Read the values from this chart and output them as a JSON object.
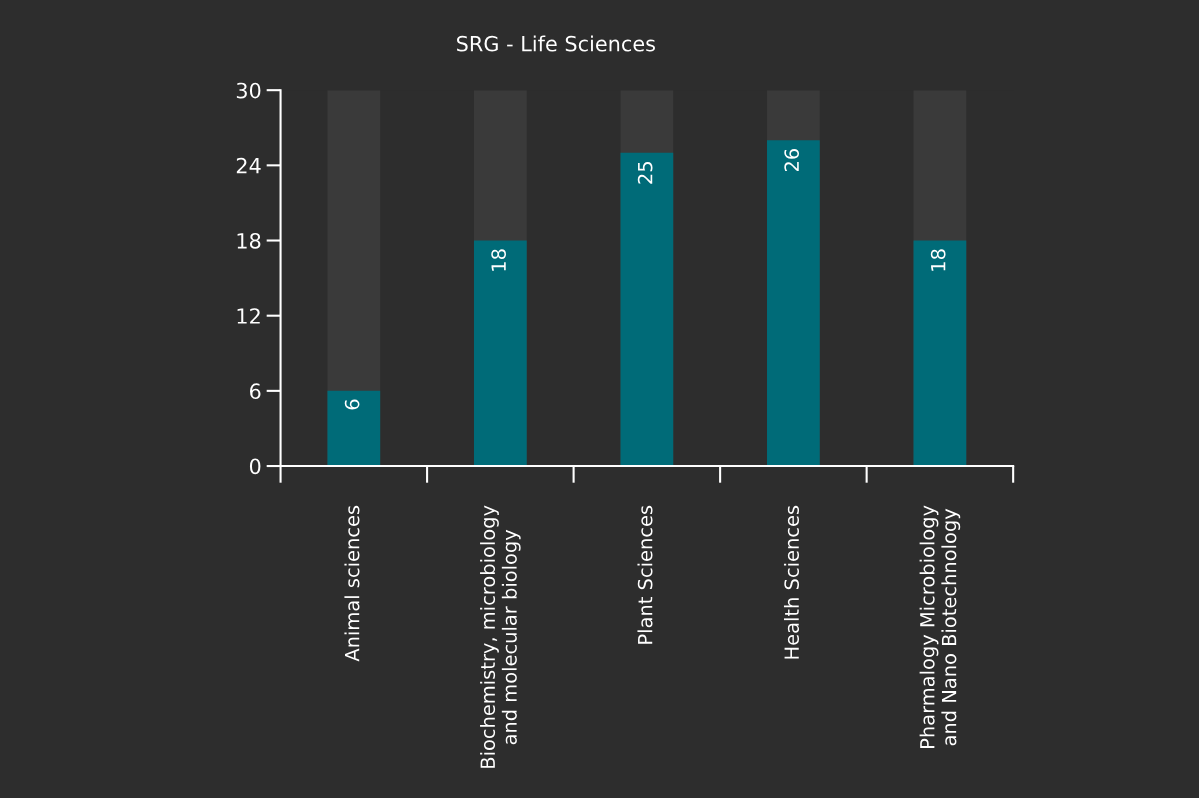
{
  "chart_data": {
    "type": "bar",
    "title": "SRG - Life Sciences",
    "categories": [
      "Animal sciences",
      "Biochemistry, microbiology\nand molecular biology",
      "Plant Sciences",
      "Health Sciences",
      "Pharmalogy Microbiology\nand Nano Biotechnology"
    ],
    "values": [
      6,
      18,
      25,
      26,
      18
    ],
    "color": "#006b78",
    "ylim": [
      0,
      30
    ],
    "yticks": [
      0,
      6,
      12,
      18,
      24,
      30
    ],
    "data_labels": true,
    "grid": false,
    "legend": false
  }
}
